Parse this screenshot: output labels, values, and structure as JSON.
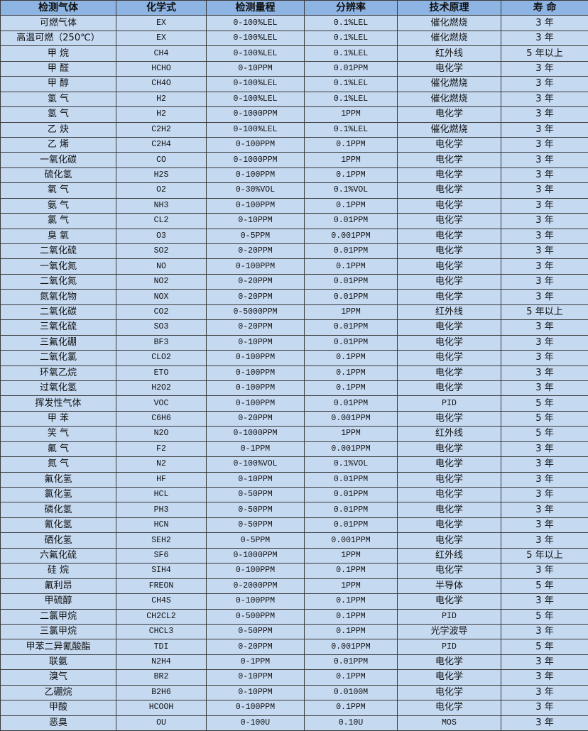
{
  "colors": {
    "header_bg": "#8db4e2",
    "body_bg": "#c5d9f1",
    "border": "#3a3a3a"
  },
  "headers": [
    "检测气体",
    "化学式",
    "检测量程",
    "分辨率",
    "技术原理",
    "寿 命"
  ],
  "rows": [
    [
      "可燃气体",
      "EX",
      "0-100%LEL",
      "0.1%LEL",
      "催化燃烧",
      "3 年"
    ],
    [
      "高温可燃（250℃）",
      "EX",
      "0-100%LEL",
      "0.1%LEL",
      "催化燃烧",
      "3 年"
    ],
    [
      "甲 烷",
      "CH4",
      "0-100%LEL",
      "0.1%LEL",
      "红外线",
      "5 年以上"
    ],
    [
      "甲 醛",
      "HCHO",
      "0-10PPM",
      "0.01PPM",
      "电化学",
      "3 年"
    ],
    [
      "甲 醇",
      "CH4O",
      "0-100%LEL",
      "0.1%LEL",
      "催化燃烧",
      "3 年"
    ],
    [
      "氢 气",
      "H2",
      "0-100%LEL",
      "0.1%LEL",
      "催化燃烧",
      "3 年"
    ],
    [
      "氢 气",
      "H2",
      "0-1000PPM",
      "1PPM",
      "电化学",
      "3 年"
    ],
    [
      "乙 炔",
      "C2H2",
      "0-100%LEL",
      "0.1%LEL",
      "催化燃烧",
      "3 年"
    ],
    [
      "乙 烯",
      "C2H4",
      "0-100PPM",
      "0.1PPM",
      "电化学",
      "3 年"
    ],
    [
      "一氧化碳",
      "CO",
      "0-1000PPM",
      "1PPM",
      "电化学",
      "3 年"
    ],
    [
      "硫化氢",
      "H2S",
      "0-100PPM",
      "0.1PPM",
      "电化学",
      "3 年"
    ],
    [
      "氧 气",
      "O2",
      "0-30%VOL",
      "0.1%VOL",
      "电化学",
      "3 年"
    ],
    [
      "氨 气",
      "NH3",
      "0-100PPM",
      "0.1PPM",
      "电化学",
      "3 年"
    ],
    [
      "氯 气",
      "CL2",
      "0-10PPM",
      "0.01PPM",
      "电化学",
      "3 年"
    ],
    [
      "臭 氧",
      "O3",
      "0-5PPM",
      "0.001PPM",
      "电化学",
      "3 年"
    ],
    [
      "二氧化硫",
      "SO2",
      "0-20PPM",
      "0.01PPM",
      "电化学",
      "3 年"
    ],
    [
      "一氧化氮",
      "NO",
      "0-100PPM",
      "0.1PPM",
      "电化学",
      "3 年"
    ],
    [
      "二氧化氮",
      "NO2",
      "0-20PPM",
      "0.01PPM",
      "电化学",
      "3 年"
    ],
    [
      "氮氧化物",
      "NOX",
      "0-20PPM",
      "0.01PPM",
      "电化学",
      "3 年"
    ],
    [
      "二氧化碳",
      "CO2",
      "0-5000PPM",
      "1PPM",
      "红外线",
      "5 年以上"
    ],
    [
      "三氧化硫",
      "SO3",
      "0-20PPM",
      "0.01PPM",
      "电化学",
      "3 年"
    ],
    [
      "三氟化硼",
      "BF3",
      "0-10PPM",
      "0.01PPM",
      "电化学",
      "3 年"
    ],
    [
      "二氧化氯",
      "CLO2",
      "0-100PPM",
      "0.1PPM",
      "电化学",
      "3 年"
    ],
    [
      "环氧乙烷",
      "ETO",
      "0-100PPM",
      "0.1PPM",
      "电化学",
      "3 年"
    ],
    [
      "过氧化氢",
      "H2O2",
      "0-100PPM",
      "0.1PPM",
      "电化学",
      "3 年"
    ],
    [
      "挥发性气体",
      "VOC",
      "0-100PPM",
      "0.01PPM",
      "PID",
      "5 年"
    ],
    [
      "甲 苯",
      "C6H6",
      "0-20PPM",
      "0.001PPM",
      "电化学",
      "5 年"
    ],
    [
      "笑 气",
      "N2O",
      "0-1000PPM",
      "1PPM",
      "红外线",
      "5 年"
    ],
    [
      "氟 气",
      "F2",
      "0-1PPM",
      "0.001PPM",
      "电化学",
      "3 年"
    ],
    [
      "氮 气",
      "N2",
      "0-100%VOL",
      "0.1%VOL",
      "电化学",
      "3 年"
    ],
    [
      "氟化氢",
      "HF",
      "0-10PPM",
      "0.01PPM",
      "电化学",
      "3 年"
    ],
    [
      "氯化氢",
      "HCL",
      "0-50PPM",
      "0.01PPM",
      "电化学",
      "3 年"
    ],
    [
      "磷化氢",
      "PH3",
      "0-50PPM",
      "0.01PPM",
      "电化学",
      "3 年"
    ],
    [
      "氰化氢",
      "HCN",
      "0-50PPM",
      "0.01PPM",
      "电化学",
      "3 年"
    ],
    [
      "硒化氢",
      "SEH2",
      "0-5PPM",
      "0.001PPM",
      "电化学",
      "3 年"
    ],
    [
      "六氟化硫",
      "SF6",
      "0-1000PPM",
      "1PPM",
      "红外线",
      "5 年以上"
    ],
    [
      "硅 烷",
      "SIH4",
      "0-100PPM",
      "0.1PPM",
      "电化学",
      "3 年"
    ],
    [
      "氟利昂",
      "FREON",
      "0-2000PPM",
      "1PPM",
      "半导体",
      "5 年"
    ],
    [
      "甲硫醇",
      "CH4S",
      "0-100PPM",
      "0.1PPM",
      "电化学",
      "3 年"
    ],
    [
      "二氯甲烷",
      "CH2CL2",
      "0-500PPM",
      "0.1PPM",
      "PID",
      "5 年"
    ],
    [
      "三氯甲烷",
      "CHCL3",
      "0-50PPM",
      "0.1PPM",
      "光学波导",
      "3 年"
    ],
    [
      "甲苯二异氰酸酯",
      "TDI",
      "0-20PPM",
      "0.001PPM",
      "PID",
      "5 年"
    ],
    [
      "联氨",
      "N2H4",
      "0-1PPM",
      "0.01PPM",
      "电化学",
      "3 年"
    ],
    [
      "溴气",
      "BR2",
      "0-10PPM",
      "0.1PPM",
      "电化学",
      "3 年"
    ],
    [
      "乙硼烷",
      "B2H6",
      "0-10PPM",
      "0.0100M",
      "电化学",
      "3 年"
    ],
    [
      "甲酸",
      "HCOOH",
      "0-100PPM",
      "0.1PPM",
      "电化学",
      "3 年"
    ],
    [
      "恶臭",
      "OU",
      "0-100U",
      "0.10U",
      "MOS",
      "3 年"
    ]
  ]
}
